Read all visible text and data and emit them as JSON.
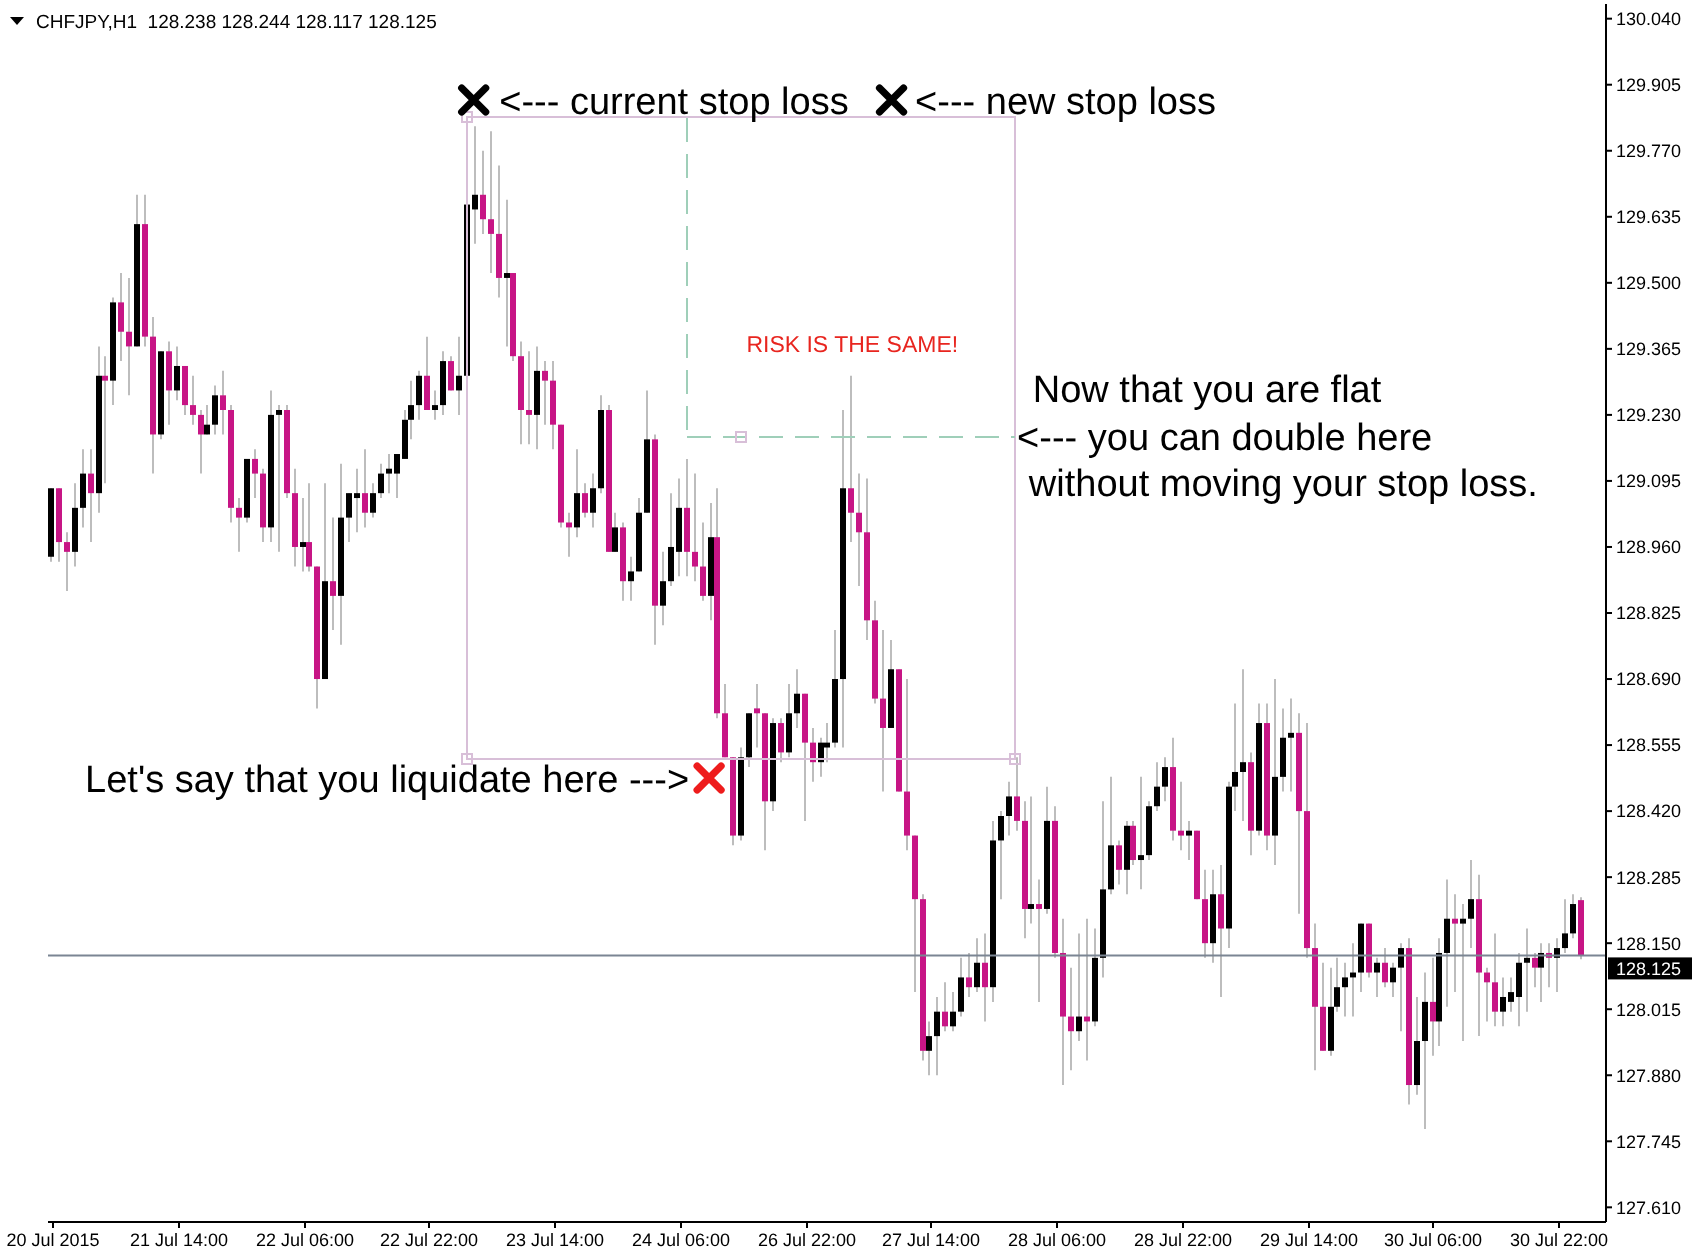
{
  "chart_data": {
    "type": "candlestick",
    "title": "CHFJPY,H1  128.238 128.244 128.117 128.125",
    "categories": [
      "20 Jul 2015",
      null,
      null,
      null,
      null,
      null,
      null,
      null,
      null,
      null,
      null,
      null,
      null,
      null,
      null,
      null,
      "21 Jul 14:00",
      null,
      null,
      null,
      null,
      null,
      null,
      null,
      null,
      null,
      null,
      null,
      null,
      null,
      null,
      null,
      "22 Jul 06:00",
      null,
      null,
      null,
      null,
      null,
      null,
      null,
      null,
      null,
      null,
      null,
      null,
      null,
      null,
      null,
      "22 Jul 22:00",
      null,
      null,
      null,
      null,
      null,
      null,
      null,
      null,
      null,
      null,
      null,
      null,
      null,
      null,
      null,
      "23 Jul 14:00",
      null,
      null,
      null,
      null,
      null,
      null,
      null,
      null,
      null,
      null,
      null,
      null,
      null,
      null,
      null,
      "24 Jul 06:00",
      null,
      null,
      null,
      null,
      null,
      null,
      null,
      null,
      null,
      null,
      null,
      null,
      null,
      null,
      null,
      "26 Jul 22:00",
      null,
      null,
      null,
      null,
      null,
      null,
      null,
      null,
      null,
      null,
      null,
      null,
      null,
      null,
      null,
      "27 Jul 14:00",
      null,
      null,
      null,
      null,
      null,
      null,
      null,
      null,
      null,
      null,
      null,
      null,
      null,
      null,
      null,
      "28 Jul 06:00",
      null,
      null,
      null,
      null,
      null,
      null,
      null,
      null,
      null,
      null,
      null,
      null,
      null,
      null,
      null,
      "28 Jul 22:00",
      null,
      null,
      null,
      null,
      null,
      null,
      null,
      null,
      null,
      null,
      null,
      null,
      null,
      null,
      null,
      "29 Jul 14:00",
      null,
      null,
      null,
      null,
      null,
      null,
      null,
      null,
      null,
      null,
      null,
      null,
      null,
      null,
      null,
      "30 Jul 06:00",
      null,
      null,
      null,
      null,
      null,
      null,
      null,
      null,
      null,
      null,
      null,
      null,
      null,
      null,
      null,
      "30 Jul 22:00",
      null,
      null,
      null
    ],
    "ohlc": [
      [
        128.94,
        129.08,
        128.93,
        129.08
      ],
      [
        129.08,
        129.08,
        128.93,
        128.97
      ],
      [
        128.97,
        128.99,
        128.87,
        128.95
      ],
      [
        128.95,
        129.09,
        128.92,
        129.04
      ],
      [
        129.04,
        129.16,
        129.0,
        129.11
      ],
      [
        129.11,
        129.16,
        128.97,
        129.07
      ],
      [
        129.07,
        129.37,
        129.03,
        129.31
      ],
      [
        129.31,
        129.35,
        129.09,
        129.3
      ],
      [
        129.3,
        129.47,
        129.25,
        129.46
      ],
      [
        129.46,
        129.52,
        129.34,
        129.4
      ],
      [
        129.4,
        129.51,
        129.27,
        129.37
      ],
      [
        129.37,
        129.68,
        129.37,
        129.62
      ],
      [
        129.62,
        129.68,
        129.37,
        129.39
      ],
      [
        129.39,
        129.43,
        129.11,
        129.19
      ],
      [
        129.19,
        129.36,
        129.18,
        129.36
      ],
      [
        129.36,
        129.38,
        129.21,
        129.28
      ],
      [
        129.28,
        129.37,
        129.26,
        129.33
      ],
      [
        129.33,
        129.33,
        129.23,
        129.25
      ],
      [
        129.25,
        129.31,
        129.21,
        129.23
      ],
      [
        129.23,
        129.24,
        129.11,
        129.19
      ],
      [
        129.19,
        129.25,
        129.19,
        129.21
      ],
      [
        129.21,
        129.29,
        129.19,
        129.27
      ],
      [
        129.27,
        129.32,
        129.19,
        129.24
      ],
      [
        129.24,
        129.25,
        129.01,
        129.04
      ],
      [
        129.04,
        129.06,
        128.95,
        129.02
      ],
      [
        129.02,
        129.14,
        129.01,
        129.14
      ],
      [
        129.14,
        129.16,
        129.06,
        129.11
      ],
      [
        129.11,
        129.12,
        128.97,
        129.0
      ],
      [
        129.0,
        129.28,
        128.97,
        129.23
      ],
      [
        129.23,
        129.25,
        128.95,
        129.24
      ],
      [
        129.24,
        129.25,
        129.06,
        129.07
      ],
      [
        129.07,
        129.12,
        128.92,
        128.96
      ],
      [
        128.96,
        129.06,
        128.91,
        128.97
      ],
      [
        128.97,
        129.09,
        128.91,
        128.92
      ],
      [
        128.92,
        128.92,
        128.63,
        128.69
      ],
      [
        128.69,
        129.09,
        128.69,
        128.89
      ],
      [
        128.89,
        129.02,
        128.79,
        128.86
      ],
      [
        128.86,
        129.13,
        128.76,
        129.02
      ],
      [
        129.02,
        129.07,
        128.97,
        129.07
      ],
      [
        129.06,
        129.12,
        128.99,
        129.07
      ],
      [
        129.07,
        129.16,
        129.0,
        129.03
      ],
      [
        129.03,
        129.09,
        129.02,
        129.07
      ],
      [
        129.07,
        129.13,
        129.06,
        129.11
      ],
      [
        129.11,
        129.15,
        129.07,
        129.12
      ],
      [
        129.11,
        129.15,
        129.06,
        129.15
      ],
      [
        129.14,
        129.24,
        129.14,
        129.22
      ],
      [
        129.22,
        129.3,
        129.18,
        129.25
      ],
      [
        129.25,
        129.32,
        129.22,
        129.31
      ],
      [
        129.31,
        129.39,
        129.24,
        129.24
      ],
      [
        129.24,
        129.28,
        129.22,
        129.25
      ],
      [
        129.25,
        129.36,
        129.23,
        129.34
      ],
      [
        129.34,
        129.35,
        129.28,
        129.28
      ],
      [
        129.28,
        129.39,
        129.23,
        129.31
      ],
      [
        129.31,
        129.66,
        129.3,
        129.66
      ],
      [
        129.65,
        129.82,
        129.58,
        129.68
      ],
      [
        129.68,
        129.77,
        129.6,
        129.63
      ],
      [
        129.63,
        129.81,
        129.52,
        129.6
      ],
      [
        129.6,
        129.74,
        129.47,
        129.51
      ],
      [
        129.51,
        129.67,
        129.37,
        129.52
      ],
      [
        129.52,
        129.52,
        129.34,
        129.35
      ],
      [
        129.35,
        129.38,
        129.17,
        129.24
      ],
      [
        129.24,
        129.36,
        129.17,
        129.23
      ],
      [
        129.23,
        129.37,
        129.16,
        129.32
      ],
      [
        129.32,
        129.34,
        129.21,
        129.3
      ],
      [
        129.3,
        129.34,
        129.16,
        129.21
      ],
      [
        129.21,
        129.21,
        129.0,
        129.01
      ],
      [
        129.01,
        129.03,
        128.94,
        129.0
      ],
      [
        129.0,
        129.16,
        128.98,
        129.07
      ],
      [
        129.07,
        129.09,
        129.02,
        129.03
      ],
      [
        129.03,
        129.11,
        129.0,
        129.08
      ],
      [
        129.08,
        129.27,
        129.07,
        129.24
      ],
      [
        129.24,
        129.25,
        128.95,
        128.95
      ],
      [
        128.95,
        129.03,
        128.95,
        129.0
      ],
      [
        129.0,
        129.01,
        128.85,
        128.89
      ],
      [
        128.89,
        128.94,
        128.85,
        128.91
      ],
      [
        128.91,
        129.06,
        128.91,
        129.03
      ],
      [
        129.03,
        129.28,
        129.03,
        129.18
      ],
      [
        129.18,
        129.19,
        128.76,
        128.84
      ],
      [
        128.84,
        128.95,
        128.8,
        128.89
      ],
      [
        128.89,
        129.07,
        128.88,
        128.96
      ],
      [
        128.95,
        129.1,
        128.9,
        129.04
      ],
      [
        129.04,
        129.14,
        128.9,
        128.95
      ],
      [
        128.95,
        129.11,
        128.89,
        128.92
      ],
      [
        128.92,
        129.01,
        128.85,
        128.86
      ],
      [
        128.86,
        129.05,
        128.81,
        128.98
      ],
      [
        128.98,
        129.08,
        128.61,
        128.62
      ],
      [
        128.62,
        128.68,
        128.53,
        128.53
      ],
      [
        128.53,
        128.53,
        128.35,
        128.37
      ],
      [
        128.37,
        128.55,
        128.36,
        128.53
      ],
      [
        128.53,
        128.62,
        128.51,
        128.62
      ],
      [
        128.63,
        128.68,
        128.55,
        128.62
      ],
      [
        128.62,
        128.62,
        128.34,
        128.44
      ],
      [
        128.44,
        128.61,
        128.42,
        128.6
      ],
      [
        128.6,
        128.61,
        128.52,
        128.54
      ],
      [
        128.54,
        128.68,
        128.53,
        128.62
      ],
      [
        128.62,
        128.71,
        128.59,
        128.66
      ],
      [
        128.66,
        128.66,
        128.4,
        128.56
      ],
      [
        128.56,
        128.59,
        128.48,
        128.52
      ],
      [
        128.52,
        128.57,
        128.49,
        128.56
      ],
      [
        128.55,
        128.6,
        128.52,
        128.56
      ],
      [
        128.56,
        128.79,
        128.55,
        128.69
      ],
      [
        128.69,
        129.24,
        128.55,
        129.08
      ],
      [
        129.08,
        129.31,
        128.97,
        129.03
      ],
      [
        129.03,
        129.11,
        128.88,
        128.99
      ],
      [
        128.99,
        129.1,
        128.77,
        128.81
      ],
      [
        128.81,
        128.85,
        128.64,
        128.65
      ],
      [
        128.65,
        128.79,
        128.46,
        128.59
      ],
      [
        128.59,
        128.77,
        128.59,
        128.71
      ],
      [
        128.71,
        128.71,
        128.46,
        128.46
      ],
      [
        128.46,
        128.69,
        128.34,
        128.37
      ],
      [
        128.37,
        128.37,
        128.05,
        128.24
      ],
      [
        128.24,
        128.25,
        127.91,
        127.93
      ],
      [
        127.93,
        127.99,
        127.88,
        127.96
      ],
      [
        127.96,
        128.04,
        127.88,
        128.01
      ],
      [
        128.01,
        128.07,
        127.97,
        127.98
      ],
      [
        127.98,
        128.05,
        127.97,
        128.01
      ],
      [
        128.01,
        128.12,
        128.0,
        128.08
      ],
      [
        128.08,
        128.13,
        128.04,
        128.06
      ],
      [
        128.06,
        128.16,
        128.05,
        128.11
      ],
      [
        128.11,
        128.17,
        127.99,
        128.06
      ],
      [
        128.06,
        128.4,
        128.03,
        128.36
      ],
      [
        128.36,
        128.42,
        128.24,
        128.41
      ],
      [
        128.41,
        128.48,
        128.37,
        128.45
      ],
      [
        128.45,
        128.53,
        128.38,
        128.4
      ],
      [
        128.4,
        128.44,
        128.16,
        128.22
      ],
      [
        128.22,
        128.45,
        128.19,
        128.23
      ],
      [
        128.23,
        128.28,
        128.03,
        128.22
      ],
      [
        128.22,
        128.47,
        128.21,
        128.4
      ],
      [
        128.4,
        128.43,
        128.12,
        128.13
      ],
      [
        128.13,
        128.2,
        127.86,
        128.0
      ],
      [
        128.0,
        128.1,
        127.89,
        127.97
      ],
      [
        127.97,
        128.17,
        127.95,
        128.0
      ],
      [
        128.0,
        128.2,
        127.91,
        127.99
      ],
      [
        127.99,
        128.18,
        127.98,
        128.12
      ],
      [
        128.12,
        128.44,
        128.08,
        128.26
      ],
      [
        128.26,
        128.49,
        128.25,
        128.35
      ],
      [
        128.35,
        128.36,
        128.27,
        128.3
      ],
      [
        128.3,
        128.4,
        128.25,
        128.39
      ],
      [
        128.39,
        128.4,
        128.31,
        128.32
      ],
      [
        128.32,
        128.49,
        128.26,
        128.33
      ],
      [
        128.33,
        128.44,
        128.32,
        128.43
      ],
      [
        128.43,
        128.52,
        128.42,
        128.47
      ],
      [
        128.47,
        128.53,
        128.44,
        128.51
      ],
      [
        128.51,
        128.57,
        128.36,
        128.38
      ],
      [
        128.38,
        128.48,
        128.34,
        128.37
      ],
      [
        128.37,
        128.4,
        128.32,
        128.38
      ],
      [
        128.38,
        128.38,
        128.24,
        128.24
      ],
      [
        128.24,
        128.3,
        128.12,
        128.15
      ],
      [
        128.15,
        128.3,
        128.11,
        128.25
      ],
      [
        128.25,
        128.31,
        128.04,
        128.18
      ],
      [
        128.18,
        128.48,
        128.14,
        128.47
      ],
      [
        128.47,
        128.64,
        128.42,
        128.5
      ],
      [
        128.5,
        128.71,
        128.4,
        128.52
      ],
      [
        128.52,
        128.54,
        128.33,
        128.38
      ],
      [
        128.38,
        128.64,
        128.37,
        128.6
      ],
      [
        128.6,
        128.64,
        128.34,
        128.37
      ],
      [
        128.37,
        128.69,
        128.31,
        128.49
      ],
      [
        128.49,
        128.63,
        128.46,
        128.57
      ],
      [
        128.57,
        128.65,
        128.46,
        128.58
      ],
      [
        128.58,
        128.62,
        128.21,
        128.42
      ],
      [
        128.42,
        128.6,
        128.12,
        128.14
      ],
      [
        128.14,
        128.19,
        127.89,
        128.02
      ],
      [
        128.02,
        128.11,
        127.93,
        127.93
      ],
      [
        127.93,
        128.1,
        127.92,
        128.02
      ],
      [
        128.02,
        128.12,
        128.01,
        128.06
      ],
      [
        128.06,
        128.11,
        128.0,
        128.08
      ],
      [
        128.08,
        128.15,
        128.0,
        128.09
      ],
      [
        128.09,
        128.19,
        128.05,
        128.19
      ],
      [
        128.19,
        128.19,
        128.08,
        128.09
      ],
      [
        128.09,
        128.12,
        128.04,
        128.11
      ],
      [
        128.11,
        128.14,
        128.06,
        128.07
      ],
      [
        128.07,
        128.11,
        128.04,
        128.1
      ],
      [
        128.1,
        128.15,
        127.97,
        128.14
      ],
      [
        128.14,
        128.16,
        127.82,
        127.86
      ],
      [
        127.86,
        128.04,
        127.84,
        127.95
      ],
      [
        127.95,
        128.09,
        127.77,
        128.03
      ],
      [
        128.03,
        128.12,
        127.92,
        127.99
      ],
      [
        127.99,
        128.16,
        127.94,
        128.13
      ],
      [
        128.13,
        128.28,
        128.02,
        128.2
      ],
      [
        128.2,
        128.25,
        128.05,
        128.19
      ],
      [
        128.19,
        128.23,
        127.95,
        128.2
      ],
      [
        128.2,
        128.32,
        128.14,
        128.24
      ],
      [
        128.24,
        128.29,
        127.96,
        128.09
      ],
      [
        128.09,
        128.1,
        127.99,
        128.07
      ],
      [
        128.07,
        128.17,
        127.98,
        128.01
      ],
      [
        128.01,
        128.08,
        127.98,
        128.04
      ],
      [
        128.03,
        128.08,
        128.01,
        128.05
      ],
      [
        128.04,
        128.13,
        127.98,
        128.11
      ],
      [
        128.11,
        128.18,
        128.01,
        128.12
      ],
      [
        128.12,
        128.13,
        128.06,
        128.1
      ],
      [
        128.1,
        128.15,
        128.03,
        128.13
      ],
      [
        128.13,
        128.15,
        128.06,
        128.12
      ],
      [
        128.12,
        128.16,
        128.05,
        128.14
      ],
      [
        128.14,
        128.24,
        128.13,
        128.17
      ],
      [
        128.17,
        128.25,
        128.16,
        128.23
      ],
      [
        128.238,
        128.244,
        128.117,
        128.125
      ]
    ],
    "colors": [
      "#000000",
      "#c71585",
      "#c71585",
      "#000000",
      "#000000",
      "#c71585",
      "#000000",
      "#c71585",
      "#000000",
      "#c71585",
      "#c71585",
      "#000000",
      "#c71585",
      "#c71585",
      "#000000",
      "#c71585",
      "#000000",
      "#c71585",
      "#c71585",
      "#c71585",
      "#000000",
      "#000000",
      "#c71585",
      "#c71585",
      "#c71585",
      "#000000",
      "#c71585",
      "#c71585",
      "#000000",
      "#000000",
      "#c71585",
      "#c71585",
      "#000000",
      "#c71585",
      "#c71585",
      "#000000",
      "#c71585",
      "#000000",
      "#000000",
      "#000000",
      "#c71585",
      "#000000",
      "#000000",
      "#000000",
      "#000000",
      "#000000",
      "#000000",
      "#000000",
      "#c71585",
      "#000000",
      "#000000",
      "#c71585",
      "#000000",
      "#000000",
      "#000000",
      "#c71585",
      "#c71585",
      "#c71585",
      "#000000",
      "#c71585",
      "#c71585",
      "#c71585",
      "#000000",
      "#c71585",
      "#c71585",
      "#c71585",
      "#c71585",
      "#000000",
      "#c71585",
      "#000000",
      "#000000",
      "#c71585",
      "#000000",
      "#c71585",
      "#000000",
      "#000000",
      "#000000",
      "#c71585",
      "#000000",
      "#000000",
      "#000000",
      "#c71585",
      "#c71585",
      "#c71585",
      "#000000",
      "#c71585",
      "#c71585",
      "#c71585",
      "#000000",
      "#000000",
      "#c71585",
      "#c71585",
      "#000000",
      "#c71585",
      "#000000",
      "#000000",
      "#c71585",
      "#c71585",
      "#000000",
      "#000000",
      "#000000",
      "#000000",
      "#c71585",
      "#c71585",
      "#c71585",
      "#c71585",
      "#c71585",
      "#000000",
      "#c71585",
      "#c71585",
      "#c71585",
      "#c71585",
      "#000000",
      "#000000",
      "#c71585",
      "#000000",
      "#000000",
      "#c71585",
      "#000000",
      "#c71585",
      "#000000",
      "#000000",
      "#000000",
      "#c71585",
      "#c71585",
      "#000000",
      "#c71585",
      "#000000",
      "#c71585",
      "#c71585",
      "#c71585",
      "#000000",
      "#c71585",
      "#000000",
      "#000000",
      "#000000",
      "#c71585",
      "#000000",
      "#c71585",
      "#000000",
      "#000000",
      "#000000",
      "#000000",
      "#c71585",
      "#c71585",
      "#000000",
      "#c71585",
      "#c71585",
      "#000000",
      "#c71585",
      "#000000",
      "#000000",
      "#000000",
      "#c71585",
      "#000000",
      "#c71585",
      "#000000",
      "#000000",
      "#000000",
      "#c71585",
      "#c71585",
      "#c71585",
      "#c71585",
      "#000000",
      "#000000",
      "#000000",
      "#000000",
      "#000000",
      "#c71585",
      "#000000",
      "#c71585",
      "#000000",
      "#000000",
      "#c71585",
      "#000000",
      "#000000",
      "#c71585",
      "#000000",
      "#000000",
      "#c71585",
      "#000000",
      "#000000",
      "#c71585",
      "#c71585",
      "#c71585",
      "#000000",
      "#000000",
      "#000000",
      "#000000",
      "#c71585",
      "#000000",
      "#c71585",
      "#000000",
      "#000000",
      "#000000",
      "#c71585"
    ],
    "ylim": [
      127.58,
      130.07
    ],
    "yticks": [
      {
        "value": 127.61,
        "label": "127.610"
      },
      {
        "value": 127.745,
        "label": "127.745"
      },
      {
        "value": 127.88,
        "label": "127.880"
      },
      {
        "value": 128.015,
        "label": "128.015"
      },
      {
        "value": 128.15,
        "label": "128.150"
      },
      {
        "value": 128.285,
        "label": "128.285"
      },
      {
        "value": 128.42,
        "label": "128.420"
      },
      {
        "value": 128.555,
        "label": "128.555"
      },
      {
        "value": 128.69,
        "label": "128.690"
      },
      {
        "value": 128.825,
        "label": "128.825"
      },
      {
        "value": 128.96,
        "label": "128.960"
      },
      {
        "value": 129.095,
        "label": "129.095"
      },
      {
        "value": 129.23,
        "label": "129.230"
      },
      {
        "value": 129.365,
        "label": "129.365"
      },
      {
        "value": 129.5,
        "label": "129.500"
      },
      {
        "value": 129.635,
        "label": "129.635"
      },
      {
        "value": 129.77,
        "label": "129.770"
      },
      {
        "value": 129.905,
        "label": "129.905"
      },
      {
        "value": 130.04,
        "label": "130.040"
      }
    ],
    "ref_lines": [
      {
        "axis": "y",
        "value": 128.125,
        "label": "128.125",
        "color": "#7b8593"
      }
    ],
    "annotations": [
      "<--- current stop loss",
      "<--- new stop loss",
      "RISK IS THE SAME!",
      "Now that you are flat",
      "<--- you can double here",
      "without moving your stop loss.",
      "Let's say that you liquidate here --->"
    ]
  }
}
